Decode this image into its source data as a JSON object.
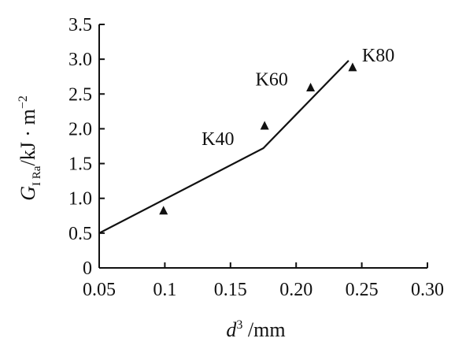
{
  "chart_data": {
    "type": "scatter",
    "xlabel": {
      "symbol": "d",
      "sup": "3",
      "unit": " /mm"
    },
    "ylabel": {
      "symbol": "G",
      "sub": "I Ra",
      "unit": "/kJ · m",
      "sup": "−2"
    },
    "xlim": [
      0.05,
      0.3
    ],
    "ylim": [
      0,
      3.5
    ],
    "x_ticks": [
      {
        "value": 0.05,
        "label": "0.05"
      },
      {
        "value": 0.1,
        "label": "0.1"
      },
      {
        "value": 0.15,
        "label": "0.15"
      },
      {
        "value": 0.2,
        "label": "0.20"
      },
      {
        "value": 0.25,
        "label": "0.25"
      },
      {
        "value": 0.3,
        "label": "0.30"
      }
    ],
    "y_ticks": [
      {
        "value": 0,
        "label": "0"
      },
      {
        "value": 0.5,
        "label": "0.5"
      },
      {
        "value": 1.0,
        "label": "1.0"
      },
      {
        "value": 1.5,
        "label": "1.5"
      },
      {
        "value": 2.0,
        "label": "2.0"
      },
      {
        "value": 2.5,
        "label": "2.5"
      },
      {
        "value": 3.0,
        "label": "3.0"
      },
      {
        "value": 3.5,
        "label": "3.5"
      }
    ],
    "points": [
      {
        "x": 0.099,
        "y": 0.83
      },
      {
        "x": 0.176,
        "y": 2.05,
        "label": "K40"
      },
      {
        "x": 0.211,
        "y": 2.6,
        "label": "K60"
      },
      {
        "x": 0.243,
        "y": 2.89,
        "label": "K80"
      }
    ],
    "line": {
      "x": [
        0.05,
        0.175,
        0.24
      ],
      "y": [
        0.5,
        1.72,
        2.98
      ]
    },
    "grid": false,
    "marker": "filled-triangle",
    "colors": {
      "line": "#111111",
      "marker": "#111111",
      "axis": "#111111"
    }
  }
}
